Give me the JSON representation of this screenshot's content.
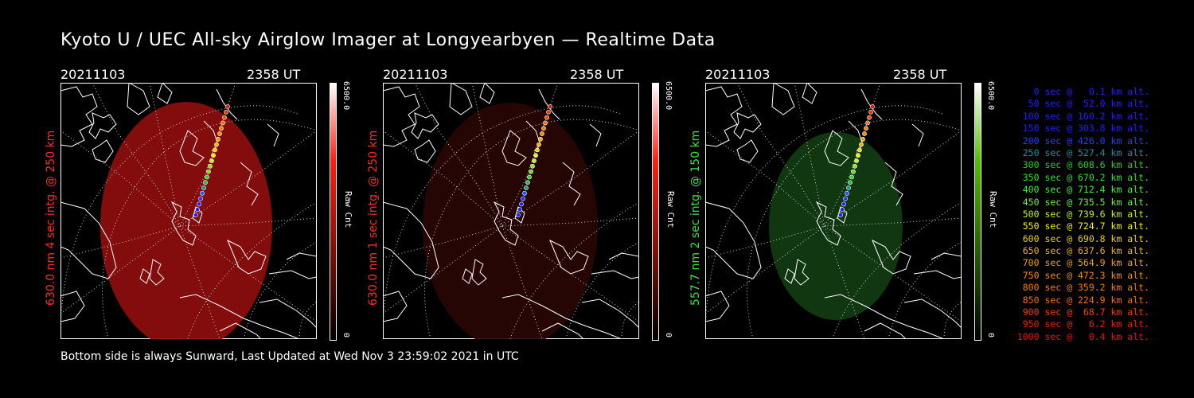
{
  "title": "Kyoto U / UEC All-sky Airglow Imager at Longyearbyen — Realtime Data",
  "panels": [
    {
      "date": "20211103",
      "time": "2358 UT",
      "side_label": "630.0 nm 4 sec intg. @ 250 km",
      "side_color": "#ff2a2a",
      "glow": "#8a0d0d",
      "glow_opacity": 0.95,
      "cbar_max": "6500.0",
      "cbar_label": "Raw Cnt",
      "cbar_min": "0",
      "cbar_color": "#ff2010"
    },
    {
      "date": "20211103",
      "time": "2358 UT",
      "side_label": "630.0 nm 1 sec intg. @ 250 km",
      "side_color": "#ff2a2a",
      "glow": "#2a0606",
      "glow_opacity": 0.9,
      "cbar_max": "6500.0",
      "cbar_label": "Raw Cnt",
      "cbar_min": "0",
      "cbar_color": "#ff2010"
    },
    {
      "date": "20211103",
      "time": "2358 UT",
      "side_label": "557.7 nm 2 sec intg. @ 150 km",
      "side_color": "#40e040",
      "glow": "#123a12",
      "glow_opacity": 0.95,
      "cbar_max": "6500.0",
      "cbar_label": "Raw Cnt",
      "cbar_min": "0",
      "cbar_color": "#50c000"
    }
  ],
  "footer": "Bottom side is always Sunward, Last Updated at Wed Nov  3 23:59:02 2021 in UTC",
  "legend": [
    {
      "text": "   0 sec @   0.1 km alt.",
      "color": "#2020ff"
    },
    {
      "text": "  50 sec @  52.0 km alt.",
      "color": "#2020ff"
    },
    {
      "text": " 100 sec @ 160.2 km alt.",
      "color": "#2020ff"
    },
    {
      "text": " 150 sec @ 303.8 km alt.",
      "color": "#2020ff"
    },
    {
      "text": " 200 sec @ 426.0 km alt.",
      "color": "#2040ff"
    },
    {
      "text": " 250 sec @ 527.4 km alt.",
      "color": "#1890a0"
    },
    {
      "text": " 300 sec @ 608.6 km alt.",
      "color": "#20d020"
    },
    {
      "text": " 350 sec @ 670.2 km alt.",
      "color": "#30e030"
    },
    {
      "text": " 400 sec @ 712.4 km alt.",
      "color": "#40f040"
    },
    {
      "text": " 450 sec @ 735.5 km alt.",
      "color": "#70f040"
    },
    {
      "text": " 500 sec @ 739.6 km alt.",
      "color": "#c0f020"
    },
    {
      "text": " 550 sec @ 724.7 km alt.",
      "color": "#f0f000"
    },
    {
      "text": " 600 sec @ 690.8 km alt.",
      "color": "#f0d000"
    },
    {
      "text": " 650 sec @ 637.6 km alt.",
      "color": "#f0b000"
    },
    {
      "text": " 700 sec @ 564.9 km alt.",
      "color": "#f0a000"
    },
    {
      "text": " 750 sec @ 472.3 km alt.",
      "color": "#f09000"
    },
    {
      "text": " 800 sec @ 359.2 km alt.",
      "color": "#f08000"
    },
    {
      "text": " 850 sec @ 224.9 km alt.",
      "color": "#f07000"
    },
    {
      "text": " 900 sec @  68.7 km alt.",
      "color": "#f04000"
    },
    {
      "text": " 950 sec @   6.2 km alt.",
      "color": "#f02000"
    },
    {
      "text": "1000 sec @   0.4 km alt.",
      "color": "#f01000"
    }
  ]
}
